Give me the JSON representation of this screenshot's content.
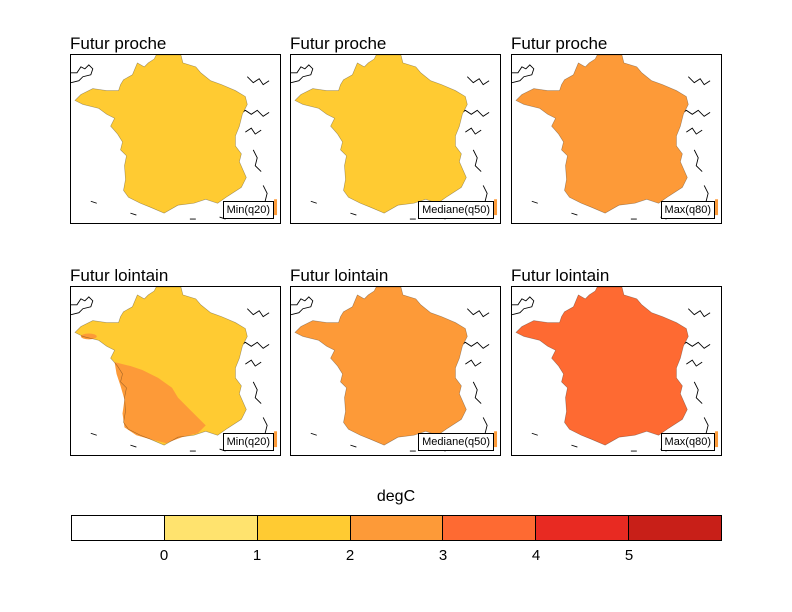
{
  "panels": [
    {
      "title": "Futur proche",
      "label": "Min(q20)",
      "fill": "#ffcb32"
    },
    {
      "title": "Futur proche",
      "label": "Mediane(q50)",
      "fill": "#ffcb32"
    },
    {
      "title": "Futur proche",
      "label": "Max(q80)",
      "fill": "#fd9a38"
    },
    {
      "title": "Futur lointain",
      "label": "Min(q20)",
      "fill": "#ffcb32",
      "patch_fill": "#fd9a38"
    },
    {
      "title": "Futur lointain",
      "label": "Mediane(q50)",
      "fill": "#fd9a38"
    },
    {
      "title": "Futur lointain",
      "label": "Max(q80)",
      "fill": "#fe6a32"
    }
  ],
  "colorbar": {
    "units": "degC",
    "colors": [
      "#ffffff",
      "#ffe36e",
      "#ffcb32",
      "#fd9a38",
      "#fe6a32",
      "#e82a22",
      "#c81f18"
    ],
    "ticks": [
      "0",
      "1",
      "2",
      "3",
      "4",
      "5"
    ]
  }
}
